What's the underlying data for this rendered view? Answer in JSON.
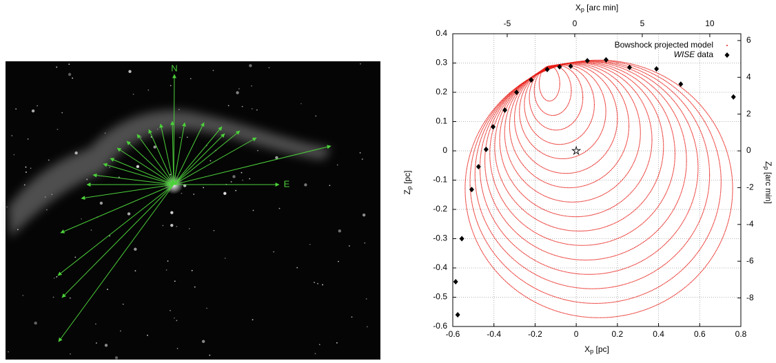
{
  "chart_data": [
    {
      "type": "image",
      "annotations": [
        "N",
        "E"
      ]
    },
    {
      "type": "scatter",
      "xlabel": [
        "X",
        "p",
        " [pc]"
      ],
      "ylabel": [
        "Z",
        "p",
        " [pc]"
      ],
      "x2label": [
        "X",
        "p",
        " [arc min]"
      ],
      "y2label": [
        "Z",
        "p",
        " [arc min]"
      ],
      "xlim": [
        -0.6,
        0.8
      ],
      "xticks": [
        -0.6,
        -0.4,
        -0.2,
        0,
        0.2,
        0.4,
        0.6,
        0.8
      ],
      "ylim": [
        -0.6,
        0.4
      ],
      "yticks": [
        -0.6,
        -0.5,
        -0.4,
        -0.3,
        -0.2,
        -0.1,
        0,
        0.1,
        0.2,
        0.3,
        0.4
      ],
      "x2lim": [
        -9.03,
        12.3
      ],
      "x2ticks": [
        -5,
        0,
        5,
        10
      ],
      "y2lim": [
        -9.55,
        6.37
      ],
      "y2ticks": [
        6,
        4,
        2,
        0,
        -2,
        -4,
        -6,
        -8
      ],
      "grid": true,
      "source": {
        "x": 0,
        "y": 0
      },
      "series": [
        {
          "name": "Bowshock projected model",
          "color": "#e8201a",
          "cx": [
            -0.13,
            -0.114,
            -0.098,
            -0.082,
            -0.066,
            -0.05,
            -0.034,
            -0.018,
            -0.002,
            0.014,
            0.03,
            0.046,
            0.062,
            0.078,
            0.094,
            0.11
          ],
          "cy": [
            0.23,
            0.206,
            0.182,
            0.158,
            0.134,
            0.11,
            0.086,
            0.062,
            0.038,
            0.014,
            -0.01,
            -0.034,
            -0.058,
            -0.082,
            -0.106,
            -0.13
          ],
          "rx": [
            0.05,
            0.09,
            0.13,
            0.17,
            0.21,
            0.25,
            0.29,
            0.33,
            0.37,
            0.41,
            0.45,
            0.49,
            0.53,
            0.57,
            0.61,
            0.65
          ],
          "ry": [
            0.06,
            0.085,
            0.111,
            0.136,
            0.161,
            0.187,
            0.212,
            0.237,
            0.263,
            0.288,
            0.313,
            0.339,
            0.364,
            0.389,
            0.415,
            0.44
          ]
        },
        {
          "name": "WISE data",
          "color": "#000000",
          "x": [
            -0.576,
            -0.586,
            -0.556,
            -0.508,
            -0.475,
            -0.438,
            -0.404,
            -0.347,
            -0.29,
            -0.219,
            -0.141,
            -0.081,
            -0.027,
            0.054,
            0.145,
            0.259,
            0.39,
            0.508,
            0.764
          ],
          "y": [
            -0.56,
            -0.447,
            -0.3,
            -0.132,
            -0.054,
            0.005,
            0.082,
            0.139,
            0.2,
            0.242,
            0.278,
            0.287,
            0.289,
            0.308,
            0.311,
            0.285,
            0.28,
            0.228,
            0.184
          ]
        }
      ]
    }
  ]
}
